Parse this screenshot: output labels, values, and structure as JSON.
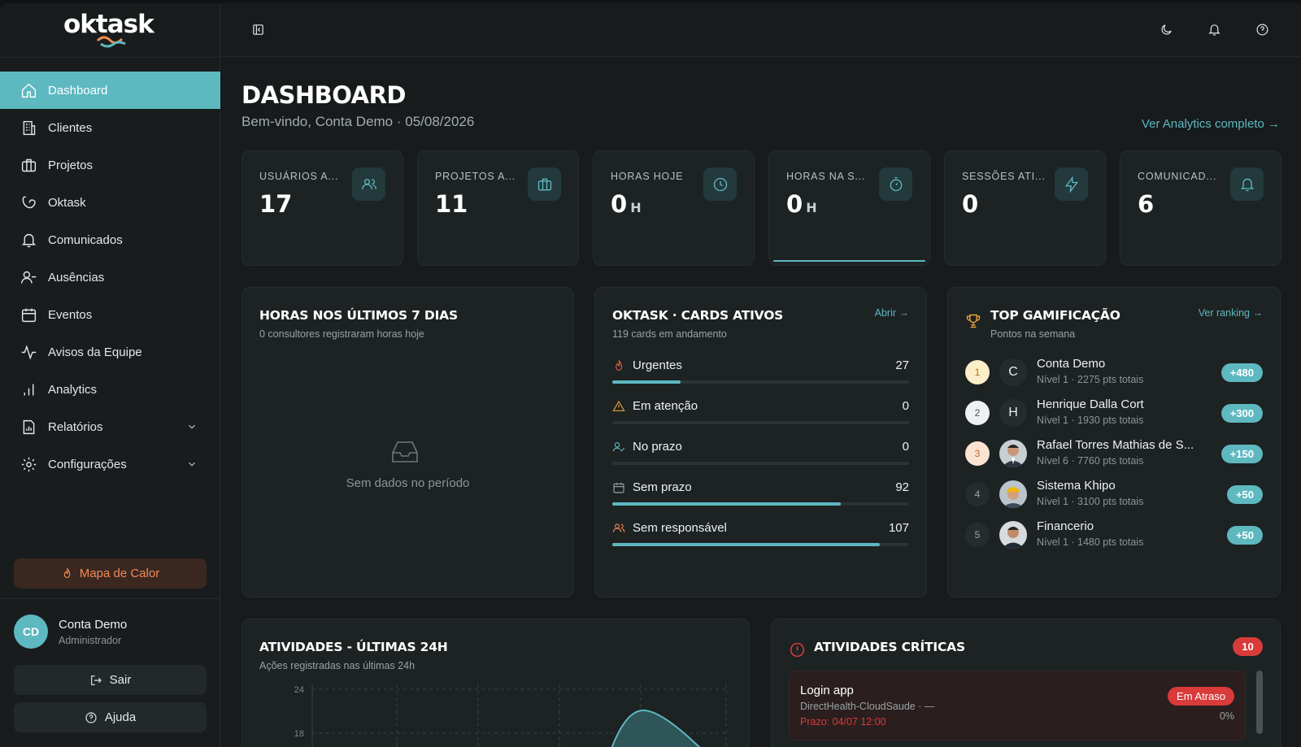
{
  "app": {
    "logo": "oktask"
  },
  "sidebar": {
    "items": [
      {
        "label": "Dashboard"
      },
      {
        "label": "Clientes"
      },
      {
        "label": "Projetos"
      },
      {
        "label": "Oktask"
      },
      {
        "label": "Comunicados"
      },
      {
        "label": "Ausências"
      },
      {
        "label": "Eventos"
      },
      {
        "label": "Avisos da Equipe"
      },
      {
        "label": "Analytics"
      },
      {
        "label": "Relatórios"
      },
      {
        "label": "Configurações"
      }
    ],
    "heatmap_label": "Mapa de Calor",
    "user": {
      "initials": "CD",
      "name": "Conta Demo",
      "role": "Administrador"
    },
    "logout_label": "Sair",
    "help_label": "Ajuda"
  },
  "header": {
    "title": "DASHBOARD",
    "welcome": "Bem-vindo, Conta Demo · 05/08/2026",
    "analytics_link": "Ver Analytics completo →"
  },
  "stats": [
    {
      "label": "USUÁRIOS A...",
      "value": "17",
      "unit": "",
      "icon": "users-icon"
    },
    {
      "label": "PROJETOS A...",
      "value": "11",
      "unit": "",
      "icon": "briefcase-icon"
    },
    {
      "label": "HORAS HOJE",
      "value": "0",
      "unit": "H",
      "icon": "clock-icon"
    },
    {
      "label": "HORAS NA S...",
      "value": "0",
      "unit": "H",
      "icon": "timer-icon"
    },
    {
      "label": "SESSÕES ATI...",
      "value": "0",
      "unit": "",
      "icon": "bolt-icon"
    },
    {
      "label": "COMUNICAD...",
      "value": "6",
      "unit": "",
      "icon": "bell-icon"
    }
  ],
  "hours_card": {
    "title": "HORAS NOS ÚLTIMOS 7 DIAS",
    "subtitle": "0 consultores registraram horas hoje",
    "empty_text": "Sem dados no período"
  },
  "oktask_card": {
    "title": "OKTASK · CARDS ATIVOS",
    "subtitle": "119 cards em andamento",
    "link": "Abrir →",
    "rows": [
      {
        "label": "Urgentes",
        "count": "27",
        "fraction": 0.23,
        "icon": "flame-icon",
        "color": "#e25a4a"
      },
      {
        "label": "Em atenção",
        "count": "0",
        "fraction": 0,
        "icon": "warning-icon",
        "color": "#e8a23a"
      },
      {
        "label": "No prazo",
        "count": "0",
        "fraction": 0,
        "icon": "user-check-icon",
        "color": "#5eb8c0"
      },
      {
        "label": "Sem prazo",
        "count": "92",
        "fraction": 0.77,
        "icon": "calendar-icon",
        "color": "#9aa4a5"
      },
      {
        "label": "Sem responsável",
        "count": "107",
        "fraction": 0.9,
        "icon": "users-icon",
        "color": "#f08b55"
      }
    ]
  },
  "gamification": {
    "title": "TOP GAMIFICAÇÃO",
    "subtitle": "Pontos na semana",
    "link": "Ver ranking →",
    "rows": [
      {
        "rank": "1",
        "avatar": "C",
        "name": "Conta Demo",
        "info": "Nível 1 · 2275 pts totais",
        "points": "+480"
      },
      {
        "rank": "2",
        "avatar": "H",
        "name": "Henrique Dalla Cort",
        "info": "Nível 1 · 1930 pts totais",
        "points": "+300"
      },
      {
        "rank": "3",
        "avatar": "",
        "name": "Rafael Torres Mathias de S...",
        "info": "Nível 6 · 7760 pts totais",
        "points": "+150"
      },
      {
        "rank": "4",
        "avatar": "",
        "name": "Sistema Khipo",
        "info": "Nível 1 · 3100 pts totais",
        "points": "+50"
      },
      {
        "rank": "5",
        "avatar": "",
        "name": "Financerio",
        "info": "Nível 1 · 1480 pts totais",
        "points": "+50"
      }
    ]
  },
  "activities": {
    "title": "ATIVIDADES - ÚLTIMAS 24H",
    "subtitle": "Ações registradas nas últimas 24h",
    "y_ticks": [
      "24",
      "18"
    ]
  },
  "critical": {
    "title": "ATIVIDADES CRÍTICAS",
    "count": "10",
    "item": {
      "title": "Login app",
      "client": "DirectHealth-CloudSaude · —",
      "due": "Prazo: 04/07 12:00",
      "status": "Em Atraso",
      "progress": "0%"
    }
  },
  "colors": {
    "accent": "#5eb8c0",
    "danger": "#d93b3b",
    "warning": "#f08b55"
  }
}
